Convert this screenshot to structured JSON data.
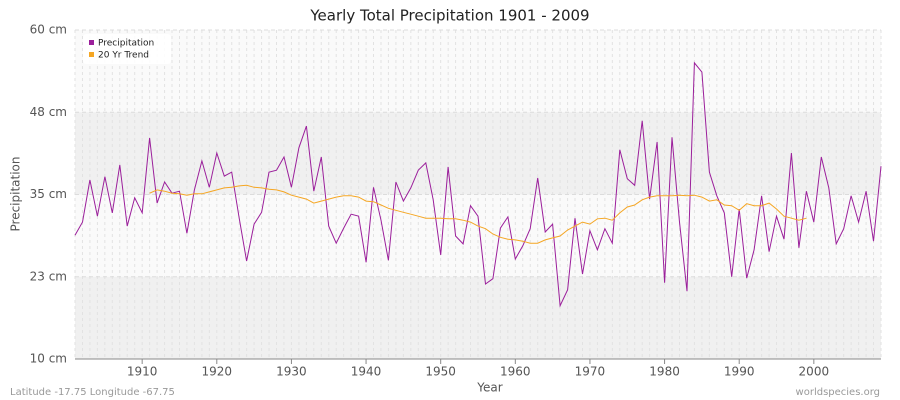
{
  "chart_data": {
    "type": "line",
    "title": "Yearly Total Precipitation 1901 - 2009",
    "x_label": "Year",
    "y_label": "Precipitation",
    "footer_left": "Latitude -17.75 Longitude -67.75",
    "footer_right": "worldspecies.org",
    "x": [
      1901,
      1902,
      1903,
      1904,
      1905,
      1906,
      1907,
      1908,
      1909,
      1910,
      1911,
      1912,
      1913,
      1914,
      1915,
      1916,
      1917,
      1918,
      1919,
      1920,
      1921,
      1922,
      1923,
      1924,
      1925,
      1926,
      1927,
      1928,
      1929,
      1930,
      1931,
      1932,
      1933,
      1934,
      1935,
      1936,
      1937,
      1938,
      1939,
      1940,
      1941,
      1942,
      1943,
      1944,
      1945,
      1946,
      1947,
      1948,
      1949,
      1950,
      1951,
      1952,
      1953,
      1954,
      1955,
      1956,
      1957,
      1958,
      1959,
      1960,
      1961,
      1962,
      1963,
      1964,
      1965,
      1966,
      1967,
      1968,
      1969,
      1970,
      1971,
      1972,
      1973,
      1974,
      1975,
      1976,
      1977,
      1978,
      1979,
      1980,
      1981,
      1982,
      1983,
      1984,
      1985,
      1986,
      1987,
      1988,
      1989,
      1990,
      1991,
      1992,
      1993,
      1994,
      1995,
      1996,
      1997,
      1998,
      1999,
      2000,
      2001,
      2002,
      2003,
      2004,
      2005,
      2006,
      2007,
      2008,
      2009
    ],
    "series": [
      {
        "name": "Precipitation",
        "color": "#9b1f9b",
        "values": [
          28.8,
          30.8,
          37.2,
          31.7,
          37.7,
          32.2,
          39.5,
          30.2,
          34.5,
          32.2,
          43.6,
          33.7,
          36.9,
          35.2,
          35.5,
          29.1,
          35.7,
          40.1,
          36.1,
          41.3,
          37.8,
          38.4,
          31.4,
          24.9,
          30.5,
          32.3,
          38.4,
          38.7,
          40.7,
          36.1,
          42.1,
          45.4,
          35.5,
          40.7,
          30.2,
          27.6,
          29.9,
          32.0,
          31.7,
          24.7,
          36.1,
          31.1,
          25.0,
          36.9,
          34.0,
          36.0,
          38.7,
          39.8,
          34.2,
          25.8,
          39.2,
          28.7,
          27.5,
          33.3,
          31.7,
          21.4,
          22.2,
          29.9,
          31.6,
          25.2,
          27.2,
          29.8,
          37.5,
          29.3,
          30.5,
          18.1,
          20.5,
          31.4,
          22.9,
          29.5,
          26.6,
          29.8,
          27.6,
          41.8,
          37.4,
          36.4,
          46.2,
          34.3,
          43.0,
          21.6,
          43.7,
          30.8,
          20.3,
          55.0,
          53.6,
          38.4,
          34.8,
          32.2,
          22.5,
          32.8,
          22.3,
          26.6,
          34.8,
          26.3,
          31.7,
          28.2,
          41.3,
          26.9,
          35.5,
          30.8,
          40.7,
          36.0,
          27.5,
          29.8,
          34.8,
          30.8,
          35.5,
          27.9,
          39.3
        ]
      },
      {
        "name": "20 Yr Trend",
        "color": "#f5a623",
        "values": [
          null,
          null,
          null,
          null,
          null,
          null,
          null,
          null,
          null,
          null,
          35.2,
          35.7,
          35.5,
          35.2,
          35.1,
          34.9,
          35.1,
          35.1,
          35.4,
          35.7,
          36.0,
          36.1,
          36.3,
          36.4,
          36.1,
          36.0,
          35.8,
          35.7,
          35.4,
          34.9,
          34.6,
          34.3,
          33.7,
          34.0,
          34.3,
          34.6,
          34.8,
          34.8,
          34.6,
          34.0,
          33.9,
          33.4,
          32.9,
          32.6,
          32.3,
          32.0,
          31.7,
          31.4,
          31.4,
          31.4,
          31.3,
          31.3,
          31.1,
          30.8,
          30.2,
          29.8,
          29.0,
          28.5,
          28.2,
          28.1,
          27.9,
          27.6,
          27.6,
          28.1,
          28.4,
          28.7,
          29.6,
          30.2,
          30.8,
          30.5,
          31.3,
          31.4,
          31.1,
          32.2,
          33.1,
          33.4,
          34.2,
          34.6,
          34.8,
          34.8,
          34.8,
          34.9,
          34.8,
          34.9,
          34.6,
          34.0,
          34.2,
          33.4,
          33.3,
          32.6,
          33.6,
          33.3,
          33.3,
          33.7,
          32.8,
          31.7,
          31.4,
          31.1,
          31.4,
          null,
          null,
          null,
          null,
          null,
          null,
          null,
          null,
          null,
          null
        ]
      }
    ],
    "xlim": [
      1901,
      2009
    ],
    "xticks": [
      1910,
      1920,
      1930,
      1940,
      1950,
      1960,
      1970,
      1980,
      1990,
      2000
    ],
    "ylim": [
      10,
      60
    ],
    "yticks": [
      {
        "value": 10,
        "label": "10 cm"
      },
      {
        "value": 22.5,
        "label": "23 cm"
      },
      {
        "value": 35,
        "label": "35 cm"
      },
      {
        "value": 47.5,
        "label": "48 cm"
      },
      {
        "value": 60,
        "label": "60 cm"
      }
    ],
    "grid": true,
    "legend": "top-left"
  }
}
